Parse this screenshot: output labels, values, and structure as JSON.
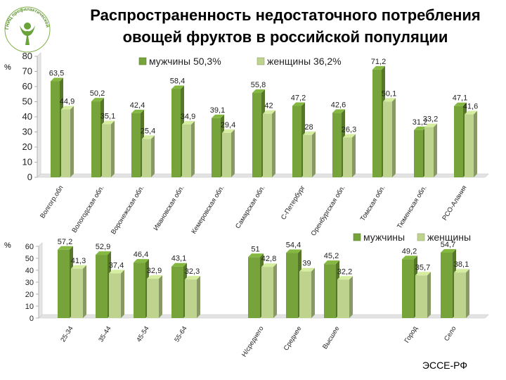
{
  "title_line1": "Распространенность недостаточного потребления",
  "title_line2": "овощей фруктов в российской популяции",
  "logo_text": "ГНИЦ профилактической медицины",
  "footer": "ЭССЕ-РФ",
  "colors": {
    "men": "#77a43a",
    "women": "#bed48e",
    "text": "#000000"
  },
  "chart_data": [
    {
      "type": "bar",
      "unit": "%",
      "ylim": [
        0,
        80
      ],
      "yticks": [
        0,
        10,
        20,
        30,
        40,
        50,
        60,
        70,
        80
      ],
      "grid": false,
      "legend": "top",
      "categories": [
        "Волгогр.обл",
        "Вологодская обл.",
        "Воронежская обл.",
        "Ивановская обл.",
        "Кемеровская обл.",
        "Самарская обл.",
        "С-Петербург",
        "Оренбургская обл.",
        "Томская обл.",
        "Тюменская обл.",
        "РСО-Алания"
      ],
      "series": [
        {
          "name": "мужчины 50,3%",
          "values": [
            63.5,
            50.2,
            42.4,
            58.4,
            39.1,
            55.8,
            47.2,
            42.6,
            71.2,
            31.2,
            47.1
          ],
          "labels": [
            "63,5",
            "50,2",
            "42,4",
            "58,4",
            "39,1",
            "55,8",
            "47,2",
            "42,6",
            "71,2",
            "31,2",
            "47,1"
          ]
        },
        {
          "name": "женщины 36,2%",
          "values": [
            44.9,
            35.1,
            25.4,
            34.9,
            29.4,
            42,
            28,
            26.3,
            50.1,
            33.2,
            41.6
          ],
          "labels": [
            "44,9",
            "35,1",
            "25,4",
            "34,9",
            "29,4",
            "42",
            "28",
            "26,3",
            "50,1",
            "33,2",
            "41,6"
          ]
        }
      ]
    },
    {
      "type": "bar",
      "unit": "%",
      "ylim": [
        0,
        60
      ],
      "yticks": [
        0,
        10,
        20,
        30,
        40,
        50,
        60
      ],
      "grid": false,
      "legend": "top-right",
      "categories": [
        "25-34",
        "35-44",
        "45-54",
        "55-64",
        "Н/среднего",
        "Среднее",
        "Высшее",
        "Город",
        "Село"
      ],
      "series": [
        {
          "name": "мужчины",
          "values": [
            57.2,
            52.9,
            46.4,
            43.1,
            51,
            54.4,
            45.2,
            49.2,
            54.7
          ],
          "labels": [
            "57,2",
            "52,9",
            "46,4",
            "43,1",
            "51",
            "54,4",
            "45,2",
            "49,2",
            "54,7"
          ]
        },
        {
          "name": "женщины",
          "values": [
            41.3,
            37.4,
            32.9,
            32.3,
            42.8,
            39,
            32.2,
            35.7,
            38.1
          ],
          "labels": [
            "41,3",
            "37,4",
            "32,9",
            "32,3",
            "42,8",
            "39",
            "32,2",
            "35,7",
            "38,1"
          ]
        }
      ]
    }
  ]
}
